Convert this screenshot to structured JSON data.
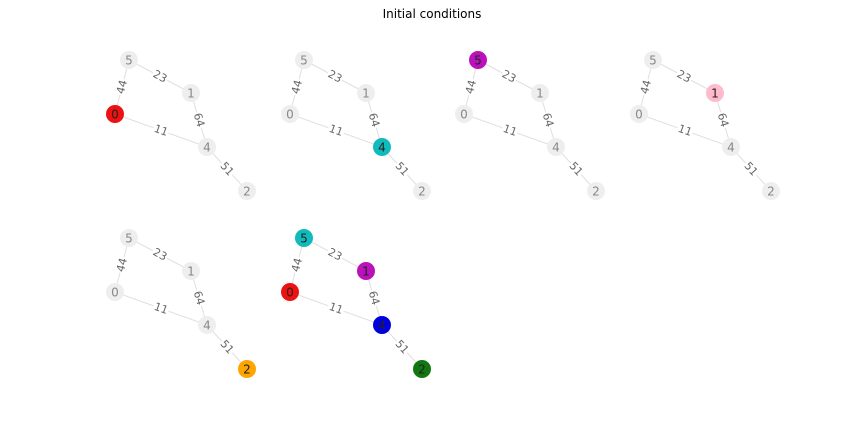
{
  "title": "Initial conditions",
  "graph": {
    "nodes": [
      "5",
      "1",
      "0",
      "4",
      "2"
    ],
    "edges": [
      {
        "source": "5",
        "target": "1",
        "weight": "23"
      },
      {
        "source": "5",
        "target": "0",
        "weight": "44"
      },
      {
        "source": "0",
        "target": "4",
        "weight": "11"
      },
      {
        "source": "1",
        "target": "4",
        "weight": "64"
      },
      {
        "source": "4",
        "target": "2",
        "weight": "51"
      }
    ]
  },
  "colors": {
    "inactive_node": "#eeeeee",
    "inactive_text": "#888888",
    "active_text": "#222222",
    "edge": "#e0e0e0",
    "edge_label": "#666666"
  },
  "panels": [
    {
      "highlight": {
        "0": "#ee1111"
      }
    },
    {
      "highlight": {
        "4": "#11bbbb"
      }
    },
    {
      "highlight": {
        "5": "#bb11bb"
      }
    },
    {
      "highlight": {
        "1": "#ffbbcc"
      }
    },
    {
      "highlight": {
        "2": "#ffa500"
      }
    },
    {
      "highlight": {
        "5": "#11bbbb",
        "1": "#bb11bb",
        "0": "#ee1111",
        "4": "#0000dd",
        "2": "#117711"
      }
    }
  ]
}
